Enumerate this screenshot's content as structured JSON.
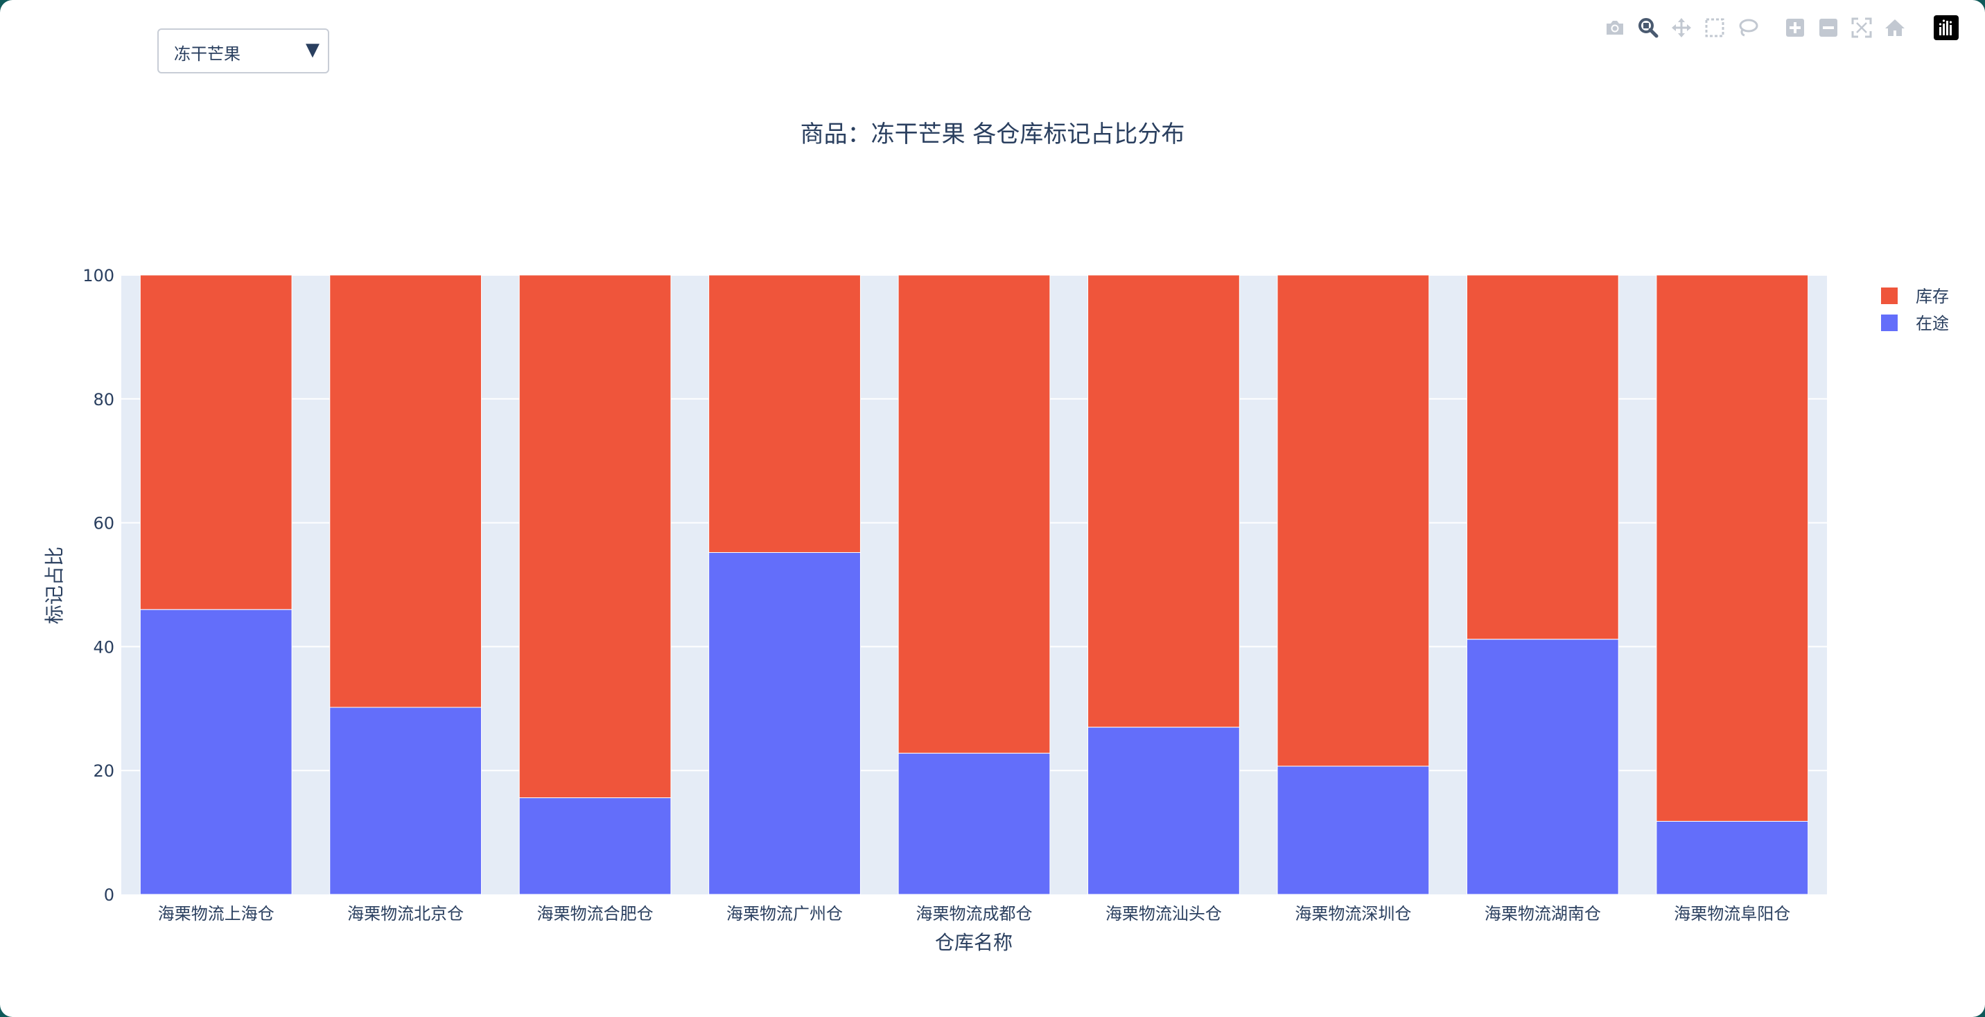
{
  "dropdown": {
    "selected": "冻干芒果"
  },
  "modebar": {
    "buttons": [
      {
        "name": "camera-icon",
        "label": "Download plot as a png"
      },
      {
        "name": "zoom-icon",
        "label": "Zoom"
      },
      {
        "name": "pan-icon",
        "label": "Pan"
      },
      {
        "name": "box-select-icon",
        "label": "Box Select"
      },
      {
        "name": "lasso-select-icon",
        "label": "Lasso Select"
      },
      {
        "name": "zoom-in-icon",
        "label": "Zoom in"
      },
      {
        "name": "zoom-out-icon",
        "label": "Zoom out"
      },
      {
        "name": "autoscale-icon",
        "label": "Autoscale"
      },
      {
        "name": "reset-axes-icon",
        "label": "Reset axes"
      },
      {
        "name": "plotly-logo-icon",
        "label": "Produced with Plotly"
      }
    ]
  },
  "colors": {
    "stock": "#EF553B",
    "transit": "#636EFA",
    "plot_bg": "#E5ECF6",
    "text": "#2a3f5f"
  },
  "chart_data": {
    "type": "bar",
    "stacked": true,
    "title": "商品：冻干芒果 各仓库标记占比分布",
    "xlabel": "仓库名称",
    "ylabel": "标记占比",
    "ylim": [
      0,
      100
    ],
    "yticks": [
      0,
      20,
      40,
      60,
      80,
      100
    ],
    "grid": true,
    "legend_position": "top-right",
    "categories": [
      "海栗物流上海仓",
      "海栗物流北京仓",
      "海栗物流合肥仓",
      "海栗物流广州仓",
      "海栗物流成都仓",
      "海栗物流汕头仓",
      "海栗物流深圳仓",
      "海栗物流湖南仓",
      "海栗物流阜阳仓"
    ],
    "series": [
      {
        "name": "在途",
        "color": "#636EFA",
        "values": [
          46,
          30.2,
          15.6,
          55.2,
          22.8,
          27,
          20.7,
          41.2,
          11.8
        ]
      },
      {
        "name": "库存",
        "color": "#EF553B",
        "values": [
          54,
          69.8,
          84.4,
          44.8,
          77.2,
          73,
          79.3,
          58.8,
          88.2
        ]
      }
    ],
    "legend": [
      "库存",
      "在途"
    ]
  }
}
